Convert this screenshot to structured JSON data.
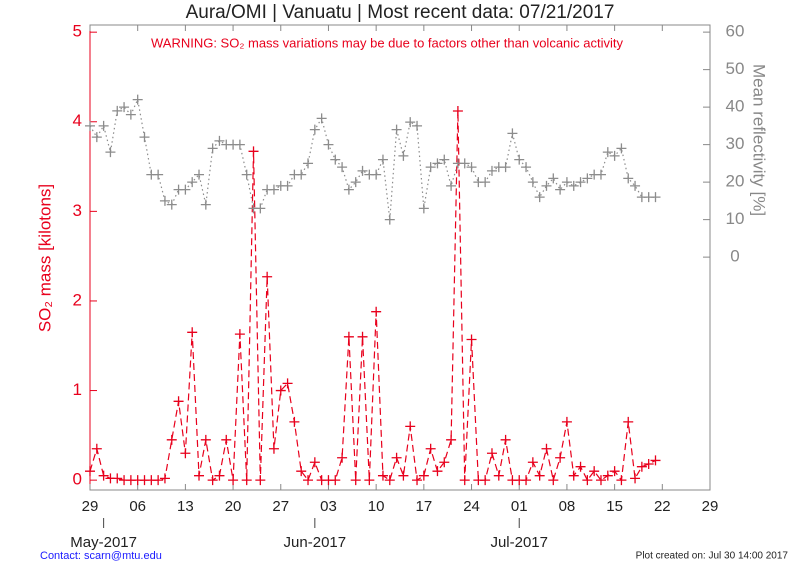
{
  "chart_data": {
    "type": "line",
    "title": "Aura/OMI | Vanuatu | Most recent data: 07/21/2017",
    "annotation": "WARNING: SO₂ mass variations may be due to factors other than volcanic activity",
    "y_label": "SO₂ mass [kilotons]",
    "y2_label": "Mean reflectivity [%]",
    "footer_left": "Contact: scarn@mtu.edu",
    "footer_right": "Plot created on: Jul 30 14:00 2017",
    "xlim": [
      0,
      91
    ],
    "xticks": [
      {
        "value": 0,
        "label": "29"
      },
      {
        "value": 7,
        "label": "06"
      },
      {
        "value": 14,
        "label": "13"
      },
      {
        "value": 21,
        "label": "20"
      },
      {
        "value": 28,
        "label": "27"
      },
      {
        "value": 35,
        "label": "03"
      },
      {
        "value": 42,
        "label": "10"
      },
      {
        "value": 49,
        "label": "17"
      },
      {
        "value": 56,
        "label": "24"
      },
      {
        "value": 63,
        "label": "01"
      },
      {
        "value": 70,
        "label": "08"
      },
      {
        "value": 77,
        "label": "15"
      },
      {
        "value": 84,
        "label": "22"
      },
      {
        "value": 91,
        "label": "29"
      }
    ],
    "month_ticks": [
      {
        "value": 2,
        "label": "May-2017"
      },
      {
        "value": 33,
        "label": "Jun-2017"
      },
      {
        "value": 63,
        "label": "Jul-2017"
      }
    ],
    "ylim": [
      -0.11,
      5.08
    ],
    "yticks": [
      0,
      1,
      2,
      3,
      4,
      5
    ],
    "y2lim": [
      -62.1,
      61.9
    ],
    "y2ticks": [
      0,
      10,
      20,
      30,
      40,
      50,
      60
    ],
    "x": [
      0,
      1,
      2,
      3,
      4,
      5,
      6,
      7,
      8,
      9,
      10,
      11,
      12,
      13,
      14,
      15,
      16,
      17,
      18,
      19,
      20,
      21,
      22,
      23,
      24,
      25,
      26,
      27,
      28,
      29,
      30,
      31,
      32,
      33,
      34,
      35,
      36,
      37,
      38,
      39,
      40,
      41,
      42,
      43,
      44,
      45,
      46,
      47,
      48,
      49,
      50,
      51,
      52,
      53,
      54,
      55,
      56,
      57,
      58,
      59,
      60,
      61,
      62,
      63,
      64,
      65,
      66,
      67,
      68,
      69,
      70,
      71,
      72,
      73,
      74,
      75,
      76,
      77,
      78,
      79,
      80,
      81,
      82,
      83
    ],
    "series": [
      {
        "color": "#e8001c",
        "axis": "y",
        "dash": "dashed",
        "values": [
          0.1,
          0.35,
          0.05,
          0.02,
          0.02,
          0.0,
          0.0,
          0.0,
          0.0,
          0.0,
          0.0,
          0.02,
          0.45,
          0.88,
          0.3,
          1.65,
          0.05,
          0.45,
          0.0,
          0.05,
          0.45,
          0.0,
          1.63,
          0.0,
          3.67,
          0.0,
          2.27,
          0.35,
          1.0,
          1.08,
          0.65,
          0.1,
          0.0,
          0.2,
          0.0,
          0.0,
          0.0,
          0.25,
          1.6,
          0.0,
          1.6,
          0.0,
          1.88,
          0.05,
          0.0,
          0.25,
          0.05,
          0.6,
          0.0,
          0.05,
          0.35,
          0.1,
          0.2,
          0.45,
          4.12,
          0.0,
          1.57,
          0.0,
          0.0,
          0.3,
          0.05,
          0.45,
          0.0,
          0.0,
          0.0,
          0.2,
          0.05,
          0.35,
          0.0,
          0.25,
          0.65,
          0.05,
          0.15,
          0.0,
          0.1,
          0.0,
          0.05,
          0.1,
          0.0,
          0.65,
          0.02,
          0.15,
          0.18,
          0.22
        ]
      },
      {
        "color": "#8c8c8c",
        "axis": "y2",
        "dash": "dotted",
        "values": [
          35,
          32,
          35,
          28,
          39,
          40,
          38,
          42,
          32,
          22,
          22,
          15,
          14,
          18,
          18,
          20,
          22,
          14,
          29,
          31,
          30,
          30,
          30,
          22,
          13,
          13,
          18,
          18,
          19,
          19,
          22,
          22,
          25,
          34,
          37,
          30,
          26,
          24,
          18,
          20,
          23,
          22,
          22,
          26,
          10,
          34,
          27,
          36,
          35,
          13,
          24,
          25,
          26,
          19,
          25,
          25,
          24,
          20,
          20,
          23,
          24,
          24,
          33,
          26,
          24,
          20,
          16,
          19,
          21,
          18,
          20,
          19,
          20,
          21,
          22,
          22,
          28,
          27,
          29,
          21,
          19,
          16,
          16,
          16
        ]
      }
    ]
  }
}
